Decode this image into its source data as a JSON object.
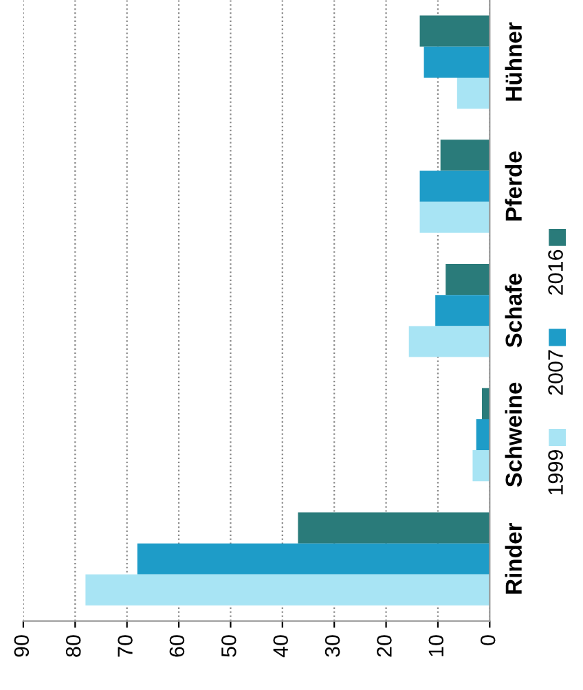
{
  "chart_data": {
    "type": "bar",
    "orientation": "horizontal",
    "categories": [
      "Hühner",
      "Pferde",
      "Schafe",
      "Schweine",
      "Rinder"
    ],
    "series": [
      {
        "name": "2016",
        "color": "#2a7b7a",
        "values": [
          13.5,
          9.5,
          8.5,
          1.5,
          37
        ]
      },
      {
        "name": "2007",
        "color": "#1e9cc8",
        "values": [
          12.7,
          13.5,
          10.5,
          2.6,
          68
        ]
      },
      {
        "name": "1999",
        "color": "#a8e4f4",
        "values": [
          6.3,
          13.5,
          15.6,
          3.3,
          78
        ]
      }
    ],
    "xlim": [
      90,
      0
    ],
    "xticks": [
      90,
      80,
      70,
      60,
      50,
      40,
      30,
      20,
      10,
      0
    ],
    "grid": "x",
    "legend": "right"
  }
}
